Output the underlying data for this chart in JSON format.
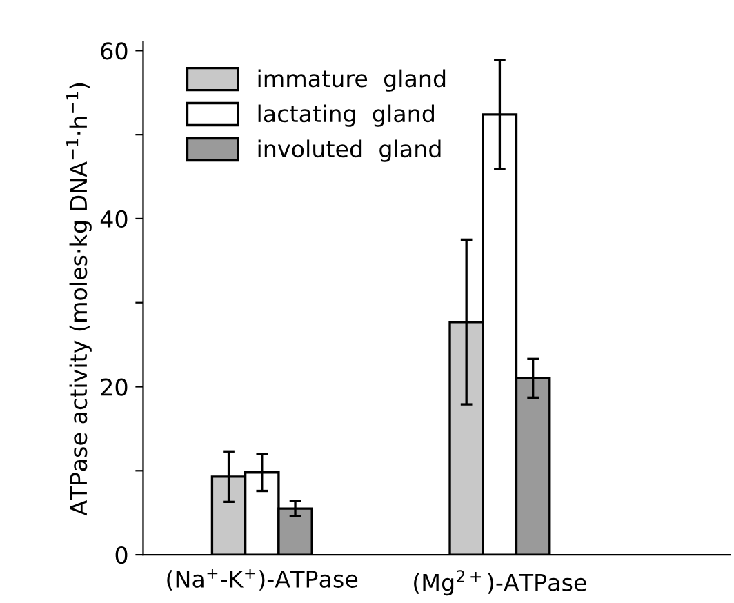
{
  "chart_data": {
    "type": "bar",
    "ylabel": "ATPase activity (moles·kg DNA$^{−1}$·h$^{−1}$)",
    "categories": [
      "(Na$^{+}$-K$^{+}$)-ATPase",
      "(Mg$^{2+}$)-ATPase"
    ],
    "series": [
      {
        "name": "immature  gland",
        "color": "#c8c8c8",
        "values": [
          9.3,
          27.7
        ],
        "errors": [
          3.0,
          9.8
        ]
      },
      {
        "name": "lactating  gland",
        "color": "#ffffff",
        "values": [
          9.8,
          52.4
        ],
        "errors": [
          2.2,
          6.5
        ]
      },
      {
        "name": "involuted  gland",
        "color": "#9a9a9a",
        "values": [
          5.5,
          21.0
        ],
        "errors": [
          0.9,
          2.3
        ]
      }
    ],
    "ylim": [
      0,
      61
    ],
    "yticks": [
      0,
      {
        "value": 10,
        "label": null
      },
      20,
      {
        "value": 30,
        "label": null
      },
      40,
      {
        "value": 50,
        "label": null
      },
      60
    ],
    "grid": false,
    "legend": "top left"
  }
}
